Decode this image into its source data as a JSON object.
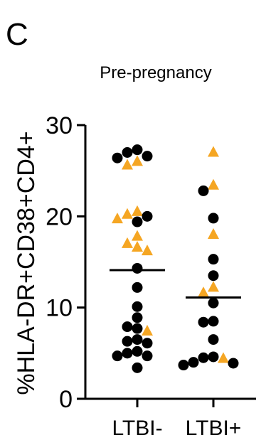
{
  "panel_label": "C",
  "chart_data": {
    "type": "scatter",
    "title": "Pre-pregnancy",
    "ylabel": "%HLA-DR+CD38+CD4+",
    "xlabel": "",
    "ylim": [
      0,
      30
    ],
    "yticks": [
      0,
      10,
      20,
      30
    ],
    "categories": [
      "LTBI-",
      "LTBI+"
    ],
    "grid": false,
    "medians": [
      14.1,
      11.1
    ],
    "series": [
      {
        "marker": "circle",
        "color": "#000000",
        "points": [
          {
            "group": "LTBI-",
            "y": 27.3
          },
          {
            "group": "LTBI-",
            "y": 27.0
          },
          {
            "group": "LTBI-",
            "y": 26.6
          },
          {
            "group": "LTBI-",
            "y": 26.4
          },
          {
            "group": "LTBI-",
            "y": 20.0
          },
          {
            "group": "LTBI-",
            "y": 19.4
          },
          {
            "group": "LTBI-",
            "y": 14.3
          },
          {
            "group": "LTBI-",
            "y": 12.2
          },
          {
            "group": "LTBI-",
            "y": 10.1
          },
          {
            "group": "LTBI-",
            "y": 8.9
          },
          {
            "group": "LTBI-",
            "y": 7.9
          },
          {
            "group": "LTBI-",
            "y": 7.7
          },
          {
            "group": "LTBI-",
            "y": 6.5
          },
          {
            "group": "LTBI-",
            "y": 6.3
          },
          {
            "group": "LTBI-",
            "y": 6.1
          },
          {
            "group": "LTBI-",
            "y": 5.2
          },
          {
            "group": "LTBI-",
            "y": 5.0
          },
          {
            "group": "LTBI-",
            "y": 4.7
          },
          {
            "group": "LTBI-",
            "y": 4.7
          },
          {
            "group": "LTBI-",
            "y": 3.4
          },
          {
            "group": "LTBI+",
            "y": 22.8
          },
          {
            "group": "LTBI+",
            "y": 19.8
          },
          {
            "group": "LTBI+",
            "y": 15.3
          },
          {
            "group": "LTBI+",
            "y": 13.5
          },
          {
            "group": "LTBI+",
            "y": 10.5
          },
          {
            "group": "LTBI+",
            "y": 8.5
          },
          {
            "group": "LTBI+",
            "y": 8.4
          },
          {
            "group": "LTBI+",
            "y": 6.5
          },
          {
            "group": "LTBI+",
            "y": 4.6
          },
          {
            "group": "LTBI+",
            "y": 4.5
          },
          {
            "group": "LTBI+",
            "y": 4.0
          },
          {
            "group": "LTBI+",
            "y": 3.9
          },
          {
            "group": "LTBI+",
            "y": 3.7
          }
        ]
      },
      {
        "marker": "triangle",
        "color": "#F5A623",
        "points": [
          {
            "group": "LTBI-",
            "y": 26.0
          },
          {
            "group": "LTBI-",
            "y": 25.6
          },
          {
            "group": "LTBI-",
            "y": 20.5
          },
          {
            "group": "LTBI-",
            "y": 20.2
          },
          {
            "group": "LTBI-",
            "y": 19.7
          },
          {
            "group": "LTBI-",
            "y": 17.8
          },
          {
            "group": "LTBI-",
            "y": 17.0
          },
          {
            "group": "LTBI-",
            "y": 16.6
          },
          {
            "group": "LTBI-",
            "y": 16.2
          },
          {
            "group": "LTBI-",
            "y": 7.4
          },
          {
            "group": "LTBI+",
            "y": 27.0
          },
          {
            "group": "LTBI+",
            "y": 23.4
          },
          {
            "group": "LTBI+",
            "y": 18.0
          },
          {
            "group": "LTBI+",
            "y": 12.2
          },
          {
            "group": "LTBI+",
            "y": 11.6
          },
          {
            "group": "LTBI+",
            "y": 4.4
          }
        ]
      }
    ]
  }
}
